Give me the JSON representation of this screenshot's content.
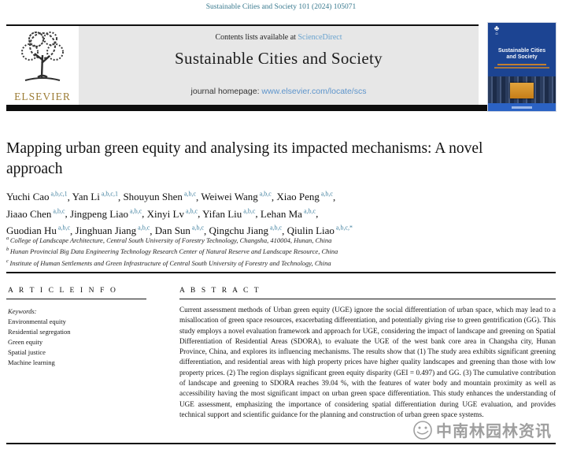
{
  "page": {
    "citation": "Sustainable Cities and Society 101 (2024) 105071"
  },
  "header": {
    "contents_prefix": "Contents lists available at ",
    "sciencedirect_link": "ScienceDirect",
    "journal_name": "Sustainable Cities and Society",
    "homepage_label": "journal homepage: ",
    "homepage_url": "www.elsevier.com/locate/scs",
    "elsevier_wordmark": "ELSEVIER",
    "cover": {
      "title_line1": "Sustainable Cities",
      "title_line2": "and Society"
    }
  },
  "article": {
    "title": "Mapping urban green equity and analysing its impacted mechanisms: A novel approach",
    "authors": [
      {
        "name": "Yuchi Cao",
        "sup": "a,b,c,1",
        "break_after": false
      },
      {
        "name": "Yan Li",
        "sup": "a,b,c,1",
        "break_after": false
      },
      {
        "name": "Shouyun Shen",
        "sup": "a,b,c",
        "break_after": false
      },
      {
        "name": "Weiwei Wang",
        "sup": "a,b,c",
        "break_after": false
      },
      {
        "name": "Xiao Peng",
        "sup": "a,b,c",
        "break_after": true
      },
      {
        "name": "Jiaao Chen",
        "sup": "a,b,c",
        "break_after": false
      },
      {
        "name": "Jingpeng Liao",
        "sup": "a,b,c",
        "break_after": false
      },
      {
        "name": "Xinyi Lv",
        "sup": "a,b,c",
        "break_after": false
      },
      {
        "name": "Yifan Liu",
        "sup": "a,b,c",
        "break_after": false
      },
      {
        "name": "Lehan Ma",
        "sup": "a,b,c",
        "break_after": true
      },
      {
        "name": "Guodian Hu",
        "sup": "a,b,c",
        "break_after": false
      },
      {
        "name": "Jinghuan Jiang",
        "sup": "a,b,c",
        "break_after": false
      },
      {
        "name": "Dan Sun",
        "sup": "a,b,c",
        "break_after": false
      },
      {
        "name": "Qingchu Jiang",
        "sup": "a,b,c",
        "break_after": false
      },
      {
        "name": "Qiulin Liao",
        "sup": "a,b,c,*",
        "break_after": false
      }
    ],
    "affiliations": [
      {
        "marker": "a",
        "text": "College of Landscape Architecture, Central South University of Forestry Technology, Changsha, 410004, Hunan, China"
      },
      {
        "marker": "b",
        "text": "Hunan Provincial Big Data Engineering Technology Research Center of Natural Reserve and Landscape Resource, China"
      },
      {
        "marker": "c",
        "text": "Institute of Human Settlements and Green Infrastructure of Central South University of Forestry and Technology, China"
      }
    ],
    "article_info_heading": "A R T I C L E  I N F O",
    "abstract_heading": "A B S T R A C T",
    "keywords_label": "Keywords:",
    "keywords": [
      "Environmental equity",
      "Residential segregation",
      "Green equity",
      "Spatial justice",
      "Machine learning"
    ],
    "abstract": "Current assessment methods of Urban green equity (UGE) ignore the social differentiation of urban space, which may lead to a misallocation of green space resources, exacerbating differentiation, and potentially giving rise to green gentrification (GG). This study employs a novel evaluation framework and approach for UGE, considering the impact of landscape and greening on Spatial Differentiation of Residential Areas (SDORA), to evaluate the UGE of the west bank core area in Changsha city, Hunan Province, China, and explores its influencing mechanisms. The results show that (1) The study area exhibits significant greening differentiation, and residential areas with high property prices have higher quality landscapes and greening than those with low property prices. (2) The region displays significant green equity disparity (GEI = 0.497) and GG. (3) The cumulative contribution of landscape and greening to SDORA reaches 39.04 %, with the features of water body and mountain proximity as well as accessibility having the most significant impact on urban green space differentiation. This study enhances the understanding of UGE assessment, emphasizing the importance of considering spatial differentiation during UGE evaluation, and provides technical support and scientific guidance for the planning and construction of urban green space systems."
  },
  "watermark": {
    "text": "中南林园林资讯"
  },
  "colors": {
    "teal": "#38798e",
    "link_blue": "#69a3cf",
    "link_blue2": "#5d94cb",
    "elsevier_gold": "#9c7c35",
    "cover_navy": "#1c4492",
    "cover_orange": "#e08a1e",
    "gray_box": "#e7e7e7"
  }
}
